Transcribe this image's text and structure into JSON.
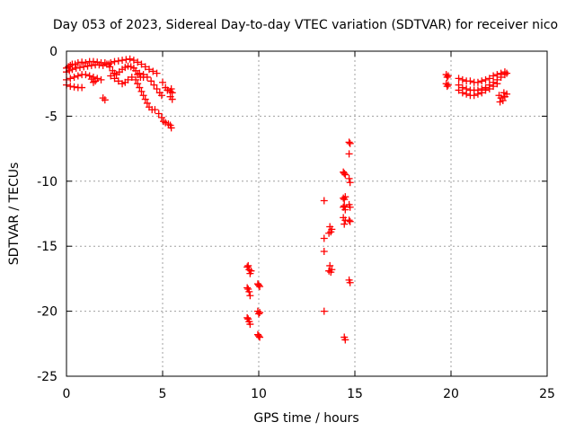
{
  "chart_data": {
    "type": "scatter",
    "title": "Day 053 of 2023, Sidereal Day-to-day VTEC variation (SDTVAR) for receiver nico",
    "xlabel": "GPS time / hours",
    "ylabel": "SDTVAR / TECUs",
    "xlim": [
      0,
      25
    ],
    "ylim": [
      -25,
      0
    ],
    "xticks": [
      0,
      5,
      10,
      15,
      20,
      25
    ],
    "yticks": [
      0,
      -5,
      -10,
      -15,
      -20,
      -25
    ],
    "xtick_labels": [
      "0",
      "5",
      "10",
      "15",
      "20",
      "25"
    ],
    "ytick_labels": [
      "0",
      "-5",
      "-10",
      "-15",
      "-20",
      "-25"
    ],
    "grid": true,
    "marker": "+",
    "color": "#ff0000",
    "series": [
      {
        "name": "SDTVAR",
        "points": [
          [
            0.0,
            -1.3
          ],
          [
            0.1,
            -1.2
          ],
          [
            0.2,
            -1.1
          ],
          [
            0.3,
            -1.0
          ],
          [
            0.45,
            -1.0
          ],
          [
            0.6,
            -0.9
          ],
          [
            0.8,
            -0.85
          ],
          [
            1.0,
            -0.9
          ],
          [
            1.2,
            -0.8
          ],
          [
            1.4,
            -0.8
          ],
          [
            1.6,
            -0.85
          ],
          [
            1.8,
            -0.9
          ],
          [
            2.0,
            -0.9
          ],
          [
            2.2,
            -1.0
          ],
          [
            0.0,
            -1.6
          ],
          [
            0.15,
            -1.5
          ],
          [
            0.3,
            -1.4
          ],
          [
            0.5,
            -1.3
          ],
          [
            0.7,
            -1.25
          ],
          [
            0.9,
            -1.2
          ],
          [
            1.1,
            -1.15
          ],
          [
            1.3,
            -1.1
          ],
          [
            1.5,
            -1.05
          ],
          [
            1.7,
            -1.05
          ],
          [
            1.9,
            -1.1
          ],
          [
            0.0,
            -2.2
          ],
          [
            0.2,
            -2.1
          ],
          [
            0.4,
            -2.0
          ],
          [
            0.6,
            -1.9
          ],
          [
            0.8,
            -1.8
          ],
          [
            1.0,
            -1.8
          ],
          [
            1.2,
            -1.9
          ],
          [
            1.4,
            -2.0
          ],
          [
            1.6,
            -2.1
          ],
          [
            1.8,
            -2.2
          ],
          [
            1.3,
            -2.15
          ],
          [
            1.5,
            -2.3
          ],
          [
            1.4,
            -2.4
          ],
          [
            0.0,
            -2.6
          ],
          [
            0.2,
            -2.7
          ],
          [
            0.4,
            -2.75
          ],
          [
            0.6,
            -2.8
          ],
          [
            0.8,
            -2.8
          ],
          [
            1.9,
            -3.6
          ],
          [
            2.0,
            -3.75
          ],
          [
            2.1,
            -1.0
          ],
          [
            2.25,
            -1.2
          ],
          [
            2.4,
            -1.5
          ],
          [
            2.5,
            -1.7
          ],
          [
            2.6,
            -1.8
          ],
          [
            2.75,
            -1.6
          ],
          [
            2.9,
            -1.4
          ],
          [
            3.05,
            -1.25
          ],
          [
            3.2,
            -1.15
          ],
          [
            3.35,
            -1.2
          ],
          [
            3.5,
            -1.3
          ],
          [
            3.6,
            -1.5
          ],
          [
            3.7,
            -1.8
          ],
          [
            3.85,
            -2.0
          ],
          [
            4.0,
            -2.0
          ],
          [
            2.3,
            -1.9
          ],
          [
            2.5,
            -2.1
          ],
          [
            2.7,
            -2.3
          ],
          [
            2.9,
            -2.5
          ],
          [
            3.05,
            -2.4
          ],
          [
            3.2,
            -2.2
          ],
          [
            3.4,
            -2.0
          ],
          [
            2.3,
            -0.9
          ],
          [
            2.5,
            -0.8
          ],
          [
            2.7,
            -0.75
          ],
          [
            2.9,
            -0.7
          ],
          [
            3.1,
            -0.65
          ],
          [
            3.3,
            -0.6
          ],
          [
            3.5,
            -0.7
          ],
          [
            3.7,
            -0.85
          ],
          [
            3.9,
            -1.0
          ],
          [
            4.1,
            -1.2
          ],
          [
            4.3,
            -1.4
          ],
          [
            4.5,
            -1.55
          ],
          [
            4.7,
            -1.7
          ],
          [
            3.8,
            -1.7
          ],
          [
            4.0,
            -1.8
          ],
          [
            4.2,
            -2.0
          ],
          [
            4.4,
            -2.3
          ],
          [
            4.55,
            -2.6
          ],
          [
            4.7,
            -2.9
          ],
          [
            4.85,
            -3.2
          ],
          [
            4.95,
            -3.4
          ],
          [
            3.6,
            -2.2
          ],
          [
            3.7,
            -2.5
          ],
          [
            3.8,
            -2.8
          ],
          [
            3.9,
            -3.1
          ],
          [
            4.0,
            -3.4
          ],
          [
            4.1,
            -3.7
          ],
          [
            4.2,
            -4.0
          ],
          [
            4.3,
            -4.3
          ],
          [
            4.45,
            -4.5
          ],
          [
            4.6,
            -4.5
          ],
          [
            4.8,
            -4.8
          ],
          [
            4.95,
            -5.1
          ],
          [
            5.05,
            -5.4
          ],
          [
            5.15,
            -5.5
          ],
          [
            5.3,
            -5.6
          ],
          [
            5.4,
            -5.7
          ],
          [
            5.45,
            -5.9
          ],
          [
            5.0,
            -2.4
          ],
          [
            5.15,
            -2.8
          ],
          [
            5.25,
            -3.0
          ],
          [
            5.4,
            -3.1
          ],
          [
            5.5,
            -3.2
          ],
          [
            5.4,
            -3.5
          ],
          [
            5.5,
            -3.7
          ],
          [
            5.45,
            -2.9
          ],
          [
            9.4,
            -16.6
          ],
          [
            9.5,
            -16.8
          ],
          [
            9.6,
            -16.9
          ],
          [
            9.45,
            -16.5
          ],
          [
            9.55,
            -17.1
          ],
          [
            9.4,
            -18.2
          ],
          [
            9.5,
            -18.5
          ],
          [
            9.55,
            -18.8
          ],
          [
            9.45,
            -18.3
          ],
          [
            9.4,
            -20.5
          ],
          [
            9.5,
            -20.8
          ],
          [
            9.55,
            -21.0
          ],
          [
            9.45,
            -20.6
          ],
          [
            9.95,
            -17.9
          ],
          [
            10.05,
            -18.1
          ],
          [
            10.0,
            -18.0
          ],
          [
            9.95,
            -20.0
          ],
          [
            10.05,
            -20.1
          ],
          [
            10.0,
            -20.2
          ],
          [
            9.95,
            -21.8
          ],
          [
            10.05,
            -22.0
          ],
          [
            10.0,
            -21.9
          ],
          [
            13.4,
            -11.5
          ],
          [
            13.4,
            -14.4
          ],
          [
            13.4,
            -15.4
          ],
          [
            13.4,
            -20.0
          ],
          [
            13.7,
            -13.5
          ],
          [
            13.8,
            -13.7
          ],
          [
            13.75,
            -13.9
          ],
          [
            13.65,
            -14.0
          ],
          [
            13.7,
            -16.5
          ],
          [
            13.8,
            -16.8
          ],
          [
            13.75,
            -17.0
          ],
          [
            13.65,
            -16.9
          ],
          [
            14.4,
            -9.3
          ],
          [
            14.5,
            -9.5
          ],
          [
            14.45,
            -9.4
          ],
          [
            14.4,
            -11.3
          ],
          [
            14.5,
            -11.2
          ],
          [
            14.45,
            -11.4
          ],
          [
            14.4,
            -12.0
          ],
          [
            14.5,
            -12.2
          ],
          [
            14.45,
            -11.9
          ],
          [
            14.4,
            -12.8
          ],
          [
            14.5,
            -13.0
          ],
          [
            14.45,
            -13.3
          ],
          [
            14.45,
            -22.0
          ],
          [
            14.5,
            -22.2
          ],
          [
            14.7,
            -7.0
          ],
          [
            14.75,
            -7.1
          ],
          [
            14.7,
            -7.9
          ],
          [
            14.7,
            -9.8
          ],
          [
            14.75,
            -10.1
          ],
          [
            14.7,
            -11.8
          ],
          [
            14.75,
            -12.0
          ],
          [
            14.7,
            -13.0
          ],
          [
            14.75,
            -13.1
          ],
          [
            14.7,
            -17.6
          ],
          [
            14.75,
            -17.8
          ],
          [
            19.75,
            -1.8
          ],
          [
            19.85,
            -1.9
          ],
          [
            19.8,
            -2.0
          ],
          [
            19.75,
            -2.5
          ],
          [
            19.85,
            -2.6
          ],
          [
            19.8,
            -2.7
          ],
          [
            20.4,
            -2.1
          ],
          [
            20.6,
            -2.2
          ],
          [
            20.8,
            -2.3
          ],
          [
            21.0,
            -2.3
          ],
          [
            21.2,
            -2.4
          ],
          [
            21.4,
            -2.4
          ],
          [
            21.6,
            -2.3
          ],
          [
            21.8,
            -2.2
          ],
          [
            22.0,
            -2.1
          ],
          [
            22.2,
            -1.9
          ],
          [
            22.4,
            -1.8
          ],
          [
            22.6,
            -1.7
          ],
          [
            22.8,
            -1.6
          ],
          [
            22.9,
            -1.7
          ],
          [
            20.4,
            -2.6
          ],
          [
            20.6,
            -2.8
          ],
          [
            20.8,
            -2.9
          ],
          [
            21.0,
            -3.0
          ],
          [
            21.2,
            -3.0
          ],
          [
            21.4,
            -3.0
          ],
          [
            21.6,
            -2.9
          ],
          [
            21.8,
            -2.8
          ],
          [
            22.0,
            -2.6
          ],
          [
            22.2,
            -2.4
          ],
          [
            22.4,
            -2.2
          ],
          [
            22.6,
            -2.0
          ],
          [
            22.8,
            -1.8
          ],
          [
            20.4,
            -3.0
          ],
          [
            20.6,
            -3.2
          ],
          [
            20.8,
            -3.3
          ],
          [
            21.0,
            -3.4
          ],
          [
            21.2,
            -3.4
          ],
          [
            21.4,
            -3.3
          ],
          [
            21.6,
            -3.2
          ],
          [
            21.8,
            -3.0
          ],
          [
            22.0,
            -2.9
          ],
          [
            22.2,
            -2.7
          ],
          [
            22.4,
            -2.5
          ],
          [
            22.5,
            -3.4
          ],
          [
            22.6,
            -3.6
          ],
          [
            22.7,
            -3.8
          ],
          [
            22.8,
            -3.5
          ],
          [
            22.9,
            -3.3
          ],
          [
            22.55,
            -3.9
          ],
          [
            22.75,
            -3.2
          ]
        ]
      }
    ]
  }
}
